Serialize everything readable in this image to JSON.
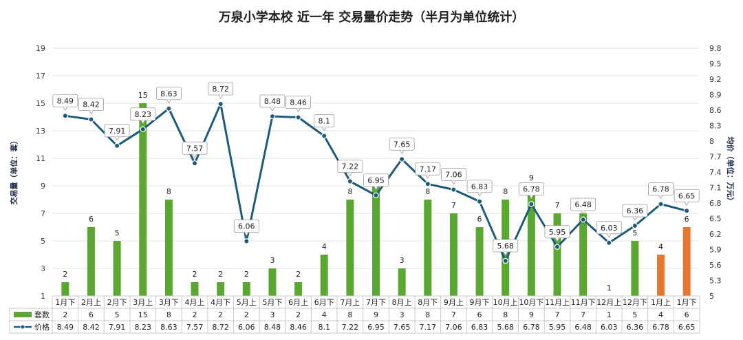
{
  "chart_data": {
    "type": "bar+line",
    "title": "万泉小学本校 近一年 交易量价走势（半月为单位统计）",
    "y_left_label": "交易量（单位：套）",
    "y_right_label": "均价（单位：万元）",
    "y_left_ticks": [
      1,
      3,
      5,
      7,
      9,
      11,
      13,
      15,
      17,
      19
    ],
    "y_left_range": [
      1,
      19
    ],
    "y_right_ticks": [
      5,
      5.3,
      5.6,
      5.9,
      6.2,
      6.5,
      6.8,
      7.1,
      7.4,
      7.7,
      8,
      8.3,
      8.6,
      8.9,
      9.2,
      9.5,
      9.8
    ],
    "y_right_range": [
      5,
      9.8
    ],
    "categories": [
      "1月下",
      "2月上",
      "2月下",
      "3月上",
      "3月下",
      "4月上",
      "4月下",
      "5月上",
      "5月下",
      "6月上",
      "6月下",
      "7月上",
      "7月下",
      "8月上",
      "8月下",
      "9月上",
      "9月下",
      "10月上",
      "10月下",
      "11月上",
      "11月下",
      "12月上",
      "12月下",
      "1月上",
      "1月下"
    ],
    "series": [
      {
        "name": "套数",
        "type": "bar",
        "values": [
          2,
          6,
          5,
          15,
          8,
          2,
          2,
          2,
          3,
          2,
          4,
          8,
          9,
          3,
          8,
          7,
          6,
          8,
          9,
          7,
          7,
          1,
          5,
          4,
          6
        ],
        "color": "#5aa832",
        "highlight_color": "#e8772e",
        "highlight_indices": [
          23,
          24
        ]
      },
      {
        "name": "价格",
        "type": "line",
        "values": [
          8.49,
          8.42,
          7.91,
          8.23,
          8.63,
          7.57,
          8.72,
          6.06,
          8.48,
          8.46,
          8.1,
          7.22,
          6.95,
          7.65,
          7.17,
          7.06,
          6.83,
          5.68,
          6.78,
          5.95,
          6.48,
          6.03,
          6.36,
          6.78,
          6.65
        ],
        "color": "#1e5b7a"
      }
    ],
    "table_rows": [
      {
        "name": "套数",
        "display": [
          "2",
          "6",
          "5",
          "15",
          "8",
          "2",
          "2",
          "2",
          "3",
          "2",
          "4",
          "8",
          "9",
          "3",
          "8",
          "7",
          "6",
          "8",
          "9",
          "7",
          "7",
          "1",
          "5",
          "4",
          "6"
        ]
      },
      {
        "name": "价格",
        "display": [
          "8.49",
          "8.42",
          "7.91",
          "8.23",
          "8.63",
          "7.57",
          "8.72",
          "6.06",
          "8.48",
          "8.46",
          "8.1",
          "7.22",
          "6.95",
          "7.65",
          "7.17",
          "7.06",
          "6.83",
          "5.68",
          "6.78",
          "5.95",
          "6.48",
          "6.03",
          "6.36",
          "6.78",
          "6.65"
        ]
      }
    ],
    "grid": true
  }
}
